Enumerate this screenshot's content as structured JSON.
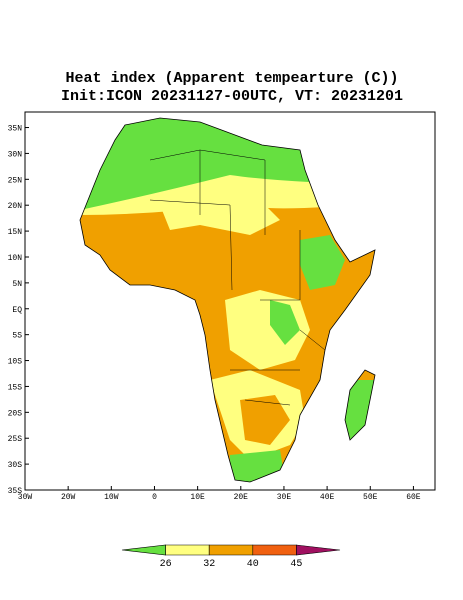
{
  "chart_data": {
    "type": "map",
    "title": "Heat index (Apparent tempearture (C))",
    "subtitle": "Init:ICON 20231127-00UTC, VT: 20231201",
    "xlim": [
      -30,
      65
    ],
    "ylim": [
      -35,
      38
    ],
    "xticks": [
      {
        "value": -30,
        "label": "30W"
      },
      {
        "value": -20,
        "label": "20W"
      },
      {
        "value": -10,
        "label": "10W"
      },
      0,
      {
        "value": 10,
        "label": "10E"
      },
      {
        "value": 20,
        "label": "20E"
      },
      {
        "value": 30,
        "label": "30E"
      },
      {
        "value": 40,
        "label": "40E"
      },
      {
        "value": 50,
        "label": "50E"
      },
      {
        "value": 60,
        "label": "60E"
      }
    ],
    "yticks": [
      {
        "value": -35,
        "label": "35S"
      },
      {
        "value": -30,
        "label": "30S"
      },
      {
        "value": -25,
        "label": "25S"
      },
      {
        "value": -20,
        "label": "20S"
      },
      {
        "value": -15,
        "label": "15S"
      },
      {
        "value": -10,
        "label": "10S"
      },
      {
        "value": -5,
        "label": "5S"
      },
      {
        "value": 0,
        "label": "EQ"
      },
      {
        "value": 5,
        "label": "5N"
      },
      {
        "value": 10,
        "label": "10N"
      },
      {
        "value": 15,
        "label": "15N"
      },
      {
        "value": 20,
        "label": "20N"
      },
      {
        "value": 25,
        "label": "25N"
      },
      {
        "value": 30,
        "label": "30N"
      },
      {
        "value": 35,
        "label": "35N"
      }
    ],
    "colorbar": {
      "ticks": [
        26,
        32,
        40,
        45
      ],
      "colors": [
        "#66e040",
        "#ffff80",
        "#f0a000",
        "#f06010",
        "#a01060"
      ]
    }
  }
}
